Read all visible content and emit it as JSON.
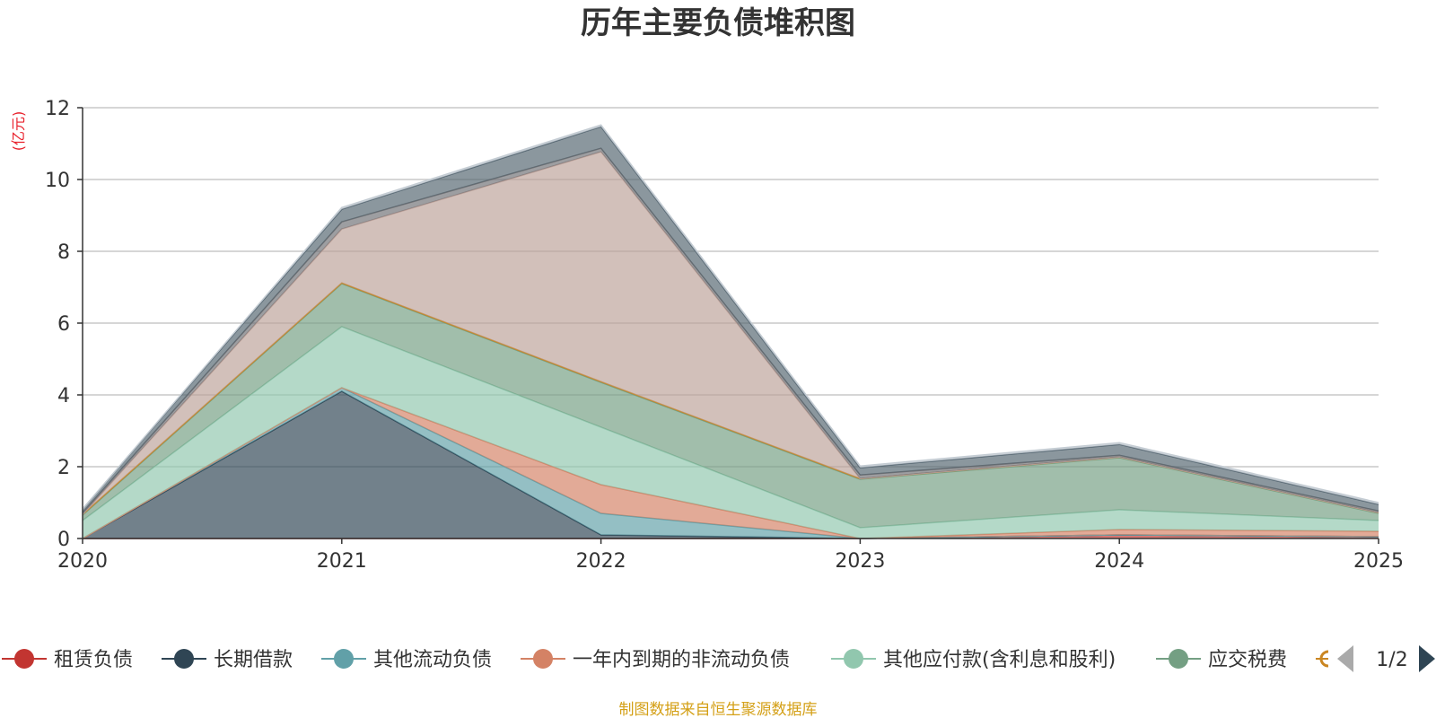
{
  "chart_data": {
    "type": "area",
    "title": "历年主要负债堆积图",
    "unit_label": "(亿元)",
    "x": [
      "2020",
      "2021",
      "2022",
      "2023",
      "2024",
      "2025"
    ],
    "ylim": [
      0,
      12
    ],
    "yticks": [
      0,
      2,
      4,
      6,
      8,
      10,
      12
    ],
    "grid": true,
    "legend_position": "bottom",
    "series": [
      {
        "name": "租赁负债",
        "color": "#c23531",
        "values": [
          0.0,
          0.0,
          0.0,
          0.0,
          0.1,
          0.05
        ]
      },
      {
        "name": "长期借款",
        "color": "#2f4554",
        "values": [
          0.0,
          4.1,
          0.1,
          0.0,
          0.0,
          0.0
        ]
      },
      {
        "name": "其他流动负债",
        "color": "#61a0a8",
        "values": [
          0.0,
          0.1,
          0.6,
          0.0,
          0.0,
          0.0
        ]
      },
      {
        "name": "一年内到期的非流动负债",
        "color": "#d48265",
        "values": [
          0.0,
          0.0,
          0.8,
          0.0,
          0.15,
          0.15
        ]
      },
      {
        "name": "其他应付款(含利息和股利)",
        "color": "#91c7ae",
        "values": [
          0.5,
          1.7,
          1.6,
          0.3,
          0.55,
          0.3
        ]
      },
      {
        "name": "应交税费",
        "color": "#749f83",
        "values": [
          0.15,
          1.2,
          1.25,
          1.35,
          1.45,
          0.2
        ]
      },
      {
        "name": "",
        "color": "#ca8622",
        "values": [
          0.02,
          0.02,
          0.02,
          0.02,
          0.02,
          0.02
        ]
      },
      {
        "name": "",
        "color": "#bda29a",
        "values": [
          0.0,
          1.5,
          6.4,
          0.0,
          0.0,
          0.0
        ]
      },
      {
        "name": "",
        "color": "#6e7074",
        "values": [
          0.05,
          0.2,
          0.1,
          0.1,
          0.05,
          0.05
        ]
      },
      {
        "name": "",
        "color": "#546570",
        "values": [
          0.1,
          0.35,
          0.6,
          0.2,
          0.3,
          0.18
        ]
      },
      {
        "name": "",
        "color": "#c4ccd3",
        "values": [
          0.0,
          0.05,
          0.05,
          0.05,
          0.05,
          0.05
        ]
      }
    ]
  },
  "legend": {
    "items": [
      {
        "name": "租赁负债",
        "color": "#c23531"
      },
      {
        "name": "长期借款",
        "color": "#2f4554"
      },
      {
        "name": "其他流动负债",
        "color": "#61a0a8"
      },
      {
        "name": "一年内到期的非流动负债",
        "color": "#d48265"
      },
      {
        "name": "其他应付款(含利息和股利)",
        "color": "#91c7ae"
      },
      {
        "name": "应交税费",
        "color": "#749f83"
      }
    ],
    "truncated_color": "#ca8622",
    "page_indicator": "1/2",
    "prev_icon": "triangle-left-icon",
    "next_icon": "triangle-right-icon"
  },
  "source_note": "制图数据来自恒生聚源数据库"
}
